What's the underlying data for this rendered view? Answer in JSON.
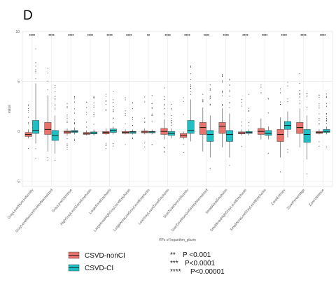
{
  "panel_label": "D",
  "colors": {
    "group1": "#e8736c",
    "group2": "#1fbfc3",
    "grid": "#ebebeb",
    "outlier": "#333333",
    "median": "#111111"
  },
  "chart_data": {
    "type": "boxplot",
    "ylabel": "value",
    "xlabel": "RFs of logarithm_glszm",
    "ylim": [
      -5.5,
      10
    ],
    "yticks": [
      -5,
      0,
      5,
      10
    ],
    "grid": true,
    "legend_placement": "bottom-left",
    "groups": [
      "CSVD-nonCI",
      "CSVD-CI"
    ],
    "features": [
      {
        "name": "GrayLevelNonUniformity",
        "sig": "****",
        "boxes": [
          {
            "q1": -0.5,
            "median": -0.3,
            "q3": -0.1,
            "lo": -0.7,
            "hi": 0.2
          },
          {
            "q1": -0.2,
            "median": 0.1,
            "q3": 1.1,
            "lo": -1.2,
            "hi": 4.8
          }
        ]
      },
      {
        "name": "GrayLevelNonUniformityNormalized",
        "sig": "****",
        "boxes": [
          {
            "q1": -0.3,
            "median": 0.2,
            "q3": 0.9,
            "lo": -2.0,
            "hi": 3.6
          },
          {
            "q1": -0.9,
            "median": -0.4,
            "q3": 0.1,
            "lo": -2.2,
            "hi": 1.6
          }
        ]
      },
      {
        "name": "GrayLevelVariance",
        "sig": "****",
        "boxes": [
          {
            "q1": -0.2,
            "median": -0.05,
            "q3": 0.05,
            "lo": -0.4,
            "hi": 0.3
          },
          {
            "q1": -0.1,
            "median": 0.0,
            "q3": 0.1,
            "lo": -0.3,
            "hi": 0.4
          }
        ]
      },
      {
        "name": "HighGrayLevelZoneEmphasis",
        "sig": "****",
        "boxes": [
          {
            "q1": -0.3,
            "median": -0.2,
            "q3": -0.1,
            "lo": -0.4,
            "hi": 0.1
          },
          {
            "q1": -0.25,
            "median": -0.15,
            "q3": -0.05,
            "lo": -0.4,
            "hi": 0.2
          }
        ]
      },
      {
        "name": "LargeAreaEmphasis",
        "sig": "****",
        "boxes": [
          {
            "q1": -0.25,
            "median": -0.1,
            "q3": 0.0,
            "lo": -0.35,
            "hi": 0.3
          },
          {
            "q1": -0.1,
            "median": 0.1,
            "q3": 0.25,
            "lo": -0.3,
            "hi": 0.5
          }
        ]
      },
      {
        "name": "LargeAreaHighGrayLevelEmphasis",
        "sig": "****",
        "boxes": [
          {
            "q1": -0.2,
            "median": -0.1,
            "q3": 0.0,
            "lo": -0.3,
            "hi": 0.2
          },
          {
            "q1": -0.2,
            "median": -0.05,
            "q3": 0.0,
            "lo": -0.3,
            "hi": 0.2
          }
        ]
      },
      {
        "name": "LargeAreaLowGrayLevelEmphasis",
        "sig": "**",
        "boxes": [
          {
            "q1": -0.15,
            "median": -0.05,
            "q3": 0.05,
            "lo": -0.3,
            "hi": 0.3
          },
          {
            "q1": -0.15,
            "median": -0.05,
            "q3": 0.0,
            "lo": -0.3,
            "hi": 0.2
          }
        ]
      },
      {
        "name": "LowGrayLevelZoneEmphasis",
        "sig": "****",
        "boxes": [
          {
            "q1": -0.3,
            "median": 0.0,
            "q3": 0.3,
            "lo": -0.8,
            "hi": 1.2
          },
          {
            "q1": -0.4,
            "median": -0.2,
            "q3": 0.0,
            "lo": -0.7,
            "hi": 0.3
          }
        ]
      },
      {
        "name": "SizeZoneNonUniformity",
        "sig": "****",
        "boxes": [
          {
            "q1": -0.6,
            "median": -0.4,
            "q3": -0.2,
            "lo": -0.8,
            "hi": 0.0
          },
          {
            "q1": -0.2,
            "median": 0.1,
            "q3": 1.1,
            "lo": -1.0,
            "hi": 3.2
          }
        ]
      },
      {
        "name": "SizeZoneNonUniformityNormalized",
        "sig": "****",
        "boxes": [
          {
            "q1": -0.3,
            "median": 0.4,
            "q3": 0.9,
            "lo": -2.0,
            "hi": 2.4
          },
          {
            "q1": -1.0,
            "median": -0.3,
            "q3": 0.1,
            "lo": -2.6,
            "hi": 1.6
          }
        ]
      },
      {
        "name": "SmallAreaEmphasis",
        "sig": "****",
        "boxes": [
          {
            "q1": -0.2,
            "median": 0.5,
            "q3": 0.9,
            "lo": -1.6,
            "hi": 2.3
          },
          {
            "q1": -1.0,
            "median": -0.3,
            "q3": 0.1,
            "lo": -2.6,
            "hi": 1.8
          }
        ]
      },
      {
        "name": "SmallAreaHighGrayLevelEmphasis",
        "sig": "****",
        "boxes": [
          {
            "q1": -0.25,
            "median": -0.15,
            "q3": -0.05,
            "lo": -0.4,
            "hi": 0.2
          },
          {
            "q1": -0.2,
            "median": -0.1,
            "q3": 0.0,
            "lo": -0.4,
            "hi": 0.2
          }
        ]
      },
      {
        "name": "SmallAreaLowGrayLevelEmphasis",
        "sig": "****",
        "boxes": [
          {
            "q1": -0.3,
            "median": 0.0,
            "q3": 0.3,
            "lo": -0.8,
            "hi": 1.3
          },
          {
            "q1": -0.4,
            "median": -0.2,
            "q3": 0.1,
            "lo": -0.8,
            "hi": 0.5
          }
        ]
      },
      {
        "name": "ZoneEntropy",
        "sig": "****",
        "boxes": [
          {
            "q1": -1.0,
            "median": -0.3,
            "q3": 0.2,
            "lo": -2.6,
            "hi": 1.4
          },
          {
            "q1": 0.2,
            "median": 0.6,
            "q3": 1.0,
            "lo": -0.6,
            "hi": 2.0
          }
        ]
      },
      {
        "name": "ZonePercentage",
        "sig": "****",
        "boxes": [
          {
            "q1": -0.2,
            "median": 0.4,
            "q3": 0.9,
            "lo": -1.6,
            "hi": 2.3
          },
          {
            "q1": -1.1,
            "median": -0.3,
            "q3": 0.2,
            "lo": -2.8,
            "hi": 1.6
          }
        ]
      },
      {
        "name": "ZoneVariance",
        "sig": "****",
        "boxes": [
          {
            "q1": -0.2,
            "median": -0.1,
            "q3": 0.0,
            "lo": -0.3,
            "hi": 0.2
          },
          {
            "q1": -0.1,
            "median": 0.0,
            "q3": 0.2,
            "lo": -0.3,
            "hi": 0.5
          }
        ]
      }
    ],
    "significance_legend": [
      {
        "symbol": "**",
        "text": "P <0.001"
      },
      {
        "symbol": "***",
        "text": "P<0.0001"
      },
      {
        "symbol": "****",
        "text": "P<0.00001"
      }
    ]
  }
}
